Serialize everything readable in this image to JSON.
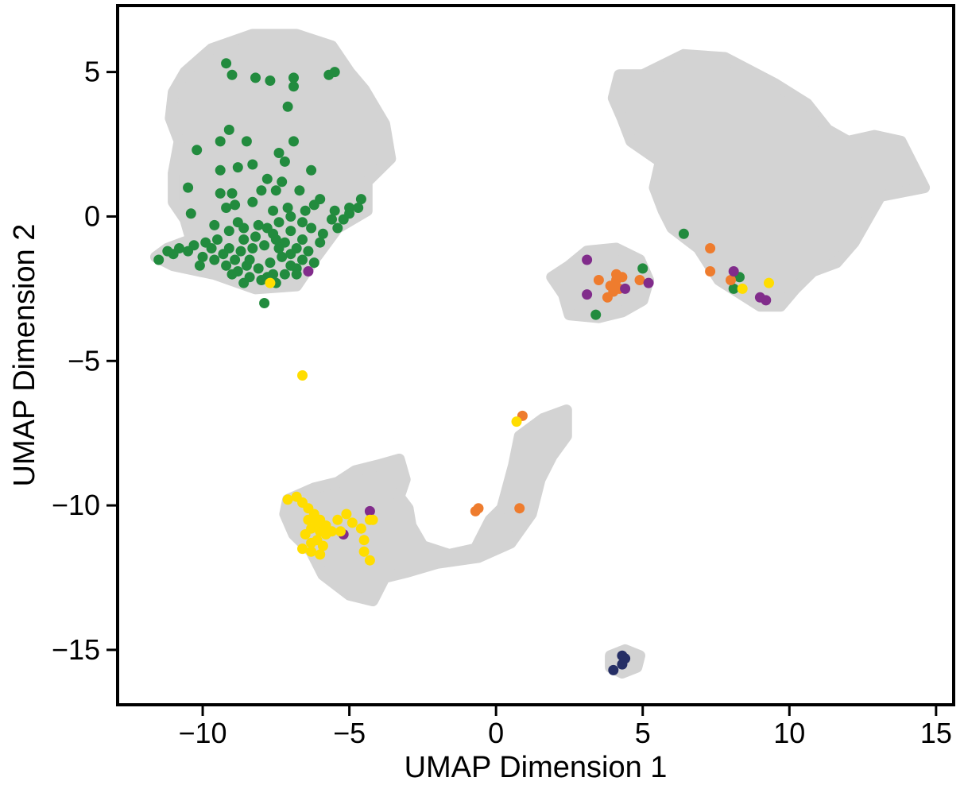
{
  "chart_data": {
    "type": "scatter",
    "title": "",
    "xlabel": "UMAP Dimension 1",
    "ylabel": "UMAP Dimension 2",
    "xlim": [
      -12.9,
      15.6
    ],
    "ylim": [
      -16.9,
      7.3
    ],
    "xticks": [
      -10,
      -5,
      0,
      5,
      10,
      15
    ],
    "yticks": [
      5,
      0,
      -5,
      -10,
      -15
    ],
    "xtick_labels": [
      "−10",
      "−5",
      "0",
      "5",
      "10",
      "15"
    ],
    "ytick_labels": [
      "5",
      "0",
      "−5",
      "−10",
      "−15"
    ],
    "grid": false,
    "legend": "none",
    "background_color": "#d3d3d3",
    "background_regions": [
      {
        "name": "upper-left",
        "polygon": [
          [
            -11.6,
            -1.4
          ],
          [
            -11.2,
            -1.1
          ],
          [
            -10.4,
            -0.8
          ],
          [
            -10.6,
            -0.1
          ],
          [
            -11.0,
            0.5
          ],
          [
            -11.0,
            1.5
          ],
          [
            -10.8,
            2.6
          ],
          [
            -11.1,
            3.4
          ],
          [
            -11.0,
            4.3
          ],
          [
            -10.6,
            5.0
          ],
          [
            -9.7,
            5.8
          ],
          [
            -8.3,
            6.3
          ],
          [
            -6.8,
            6.3
          ],
          [
            -5.6,
            5.9
          ],
          [
            -5.0,
            5.0
          ],
          [
            -4.5,
            4.4
          ],
          [
            -3.8,
            3.2
          ],
          [
            -3.6,
            2.0
          ],
          [
            -4.4,
            1.2
          ],
          [
            -4.4,
            0.2
          ],
          [
            -5.4,
            -0.4
          ],
          [
            -6.2,
            -1.5
          ],
          [
            -6.8,
            -2.4
          ],
          [
            -8.2,
            -2.5
          ],
          [
            -9.6,
            -2.0
          ],
          [
            -11.0,
            -1.7
          ]
        ]
      },
      {
        "name": "upper-right",
        "polygon": [
          [
            4.2,
            4.9
          ],
          [
            5.0,
            4.9
          ],
          [
            6.4,
            5.6
          ],
          [
            7.8,
            5.5
          ],
          [
            9.5,
            4.6
          ],
          [
            10.6,
            3.9
          ],
          [
            11.3,
            3.0
          ],
          [
            12.0,
            2.6
          ],
          [
            12.9,
            2.8
          ],
          [
            13.8,
            2.6
          ],
          [
            14.6,
            1.0
          ],
          [
            13.1,
            0.7
          ],
          [
            12.2,
            -0.9
          ],
          [
            11.6,
            -1.6
          ],
          [
            10.8,
            -1.9
          ],
          [
            10.2,
            -2.5
          ],
          [
            9.7,
            -3.1
          ],
          [
            9.0,
            -3.1
          ],
          [
            7.6,
            -2.2
          ],
          [
            6.9,
            -1.1
          ],
          [
            6.0,
            -0.4
          ],
          [
            5.7,
            0.2
          ],
          [
            5.4,
            1.0
          ],
          [
            5.6,
            1.9
          ],
          [
            4.6,
            2.6
          ],
          [
            4.3,
            3.4
          ],
          [
            4.0,
            4.1
          ]
        ]
      },
      {
        "name": "middle-small",
        "polygon": [
          [
            1.9,
            -2.1
          ],
          [
            2.5,
            -1.7
          ],
          [
            3.1,
            -1.2
          ],
          [
            4.1,
            -1.1
          ],
          [
            4.9,
            -1.5
          ],
          [
            5.2,
            -2.2
          ],
          [
            5.0,
            -2.9
          ],
          [
            4.3,
            -3.3
          ],
          [
            3.5,
            -3.5
          ],
          [
            2.5,
            -3.4
          ],
          [
            2.3,
            -2.7
          ]
        ]
      },
      {
        "name": "bottom-island",
        "polygon": [
          [
            -7.1,
            -9.8
          ],
          [
            -6.2,
            -9.4
          ],
          [
            -5.4,
            -9.2
          ],
          [
            -4.8,
            -8.8
          ],
          [
            -4.0,
            -8.6
          ],
          [
            -3.3,
            -8.4
          ],
          [
            -3.1,
            -9.1
          ],
          [
            -3.3,
            -9.7
          ],
          [
            -3.0,
            -10.1
          ],
          [
            -2.9,
            -10.7
          ],
          [
            -2.5,
            -11.4
          ],
          [
            -1.6,
            -11.7
          ],
          [
            -0.7,
            -11.5
          ],
          [
            -0.2,
            -10.5
          ],
          [
            0.2,
            -10.1
          ],
          [
            0.6,
            -8.6
          ],
          [
            0.8,
            -7.6
          ],
          [
            1.6,
            -7.0
          ],
          [
            2.4,
            -6.7
          ],
          [
            2.4,
            -7.6
          ],
          [
            1.9,
            -8.3
          ],
          [
            1.5,
            -9.1
          ],
          [
            1.2,
            -10.3
          ],
          [
            0.5,
            -11.3
          ],
          [
            -0.6,
            -11.8
          ],
          [
            -2.0,
            -12.0
          ],
          [
            -3.0,
            -12.3
          ],
          [
            -3.8,
            -12.5
          ],
          [
            -4.2,
            -13.3
          ],
          [
            -5.0,
            -13.1
          ],
          [
            -5.9,
            -12.4
          ],
          [
            -6.3,
            -11.6
          ],
          [
            -6.9,
            -11.0
          ],
          [
            -7.2,
            -10.3
          ]
        ]
      },
      {
        "name": "tiny-bottom",
        "polygon": [
          [
            3.9,
            -15.2
          ],
          [
            4.4,
            -15.0
          ],
          [
            4.9,
            -15.2
          ],
          [
            4.8,
            -15.6
          ],
          [
            4.3,
            -15.8
          ],
          [
            3.9,
            -15.6
          ]
        ]
      }
    ],
    "series": [
      {
        "color": "#228b3e",
        "points": [
          [
            -9.2,
            5.3
          ],
          [
            -9.0,
            4.9
          ],
          [
            -8.2,
            4.8
          ],
          [
            -7.7,
            4.7
          ],
          [
            -6.9,
            4.8
          ],
          [
            -6.9,
            4.5
          ],
          [
            -5.7,
            4.9
          ],
          [
            -5.5,
            5.0
          ],
          [
            -7.1,
            3.8
          ],
          [
            -9.1,
            3.0
          ],
          [
            -9.4,
            2.6
          ],
          [
            -8.5,
            2.6
          ],
          [
            -6.9,
            2.6
          ],
          [
            -10.2,
            2.3
          ],
          [
            -7.4,
            2.2
          ],
          [
            -7.2,
            1.9
          ],
          [
            -8.3,
            1.8
          ],
          [
            -9.4,
            1.6
          ],
          [
            -8.8,
            1.7
          ],
          [
            -7.8,
            1.3
          ],
          [
            -6.3,
            1.6
          ],
          [
            -7.3,
            1.2
          ],
          [
            -7.5,
            0.9
          ],
          [
            -8.0,
            0.9
          ],
          [
            -9.0,
            0.8
          ],
          [
            -9.4,
            0.8
          ],
          [
            -10.5,
            1.0
          ],
          [
            -6.7,
            0.9
          ],
          [
            -6.0,
            0.6
          ],
          [
            -6.2,
            0.4
          ],
          [
            -4.6,
            0.6
          ],
          [
            -5.0,
            0.3
          ],
          [
            -5.5,
            0.2
          ],
          [
            -10.4,
            0.1
          ],
          [
            -9.2,
            0.3
          ],
          [
            -7.1,
            0.3
          ],
          [
            -6.5,
            0.2
          ],
          [
            -11.5,
            -1.5
          ],
          [
            -11.0,
            -1.3
          ],
          [
            -10.5,
            -1.2
          ],
          [
            -10.0,
            -1.4
          ],
          [
            -9.6,
            -1.5
          ],
          [
            -9.2,
            -1.7
          ],
          [
            -8.8,
            -1.9
          ],
          [
            -8.4,
            -2.1
          ],
          [
            -8.0,
            -2.2
          ],
          [
            -7.6,
            -2.0
          ],
          [
            -7.2,
            -2.0
          ],
          [
            -6.8,
            -1.8
          ],
          [
            -6.6,
            -1.5
          ],
          [
            -6.8,
            -1.1
          ],
          [
            -7.2,
            -0.9
          ],
          [
            -7.6,
            -0.6
          ],
          [
            -8.1,
            -0.3
          ],
          [
            -8.6,
            -0.4
          ],
          [
            -9.1,
            -0.5
          ],
          [
            -9.5,
            -0.8
          ],
          [
            -9.9,
            -0.9
          ],
          [
            -10.3,
            -1.0
          ],
          [
            -9.7,
            -1.1
          ],
          [
            -9.3,
            -1.3
          ],
          [
            -8.9,
            -1.5
          ],
          [
            -8.5,
            -1.7
          ],
          [
            -8.1,
            -1.8
          ],
          [
            -7.7,
            -1.6
          ],
          [
            -7.3,
            -1.4
          ],
          [
            -7.0,
            -1.3
          ],
          [
            -7.4,
            -1.1
          ],
          [
            -7.9,
            -1.0
          ],
          [
            -8.3,
            -1.1
          ],
          [
            -8.7,
            -1.2
          ],
          [
            -9.1,
            -1.1
          ],
          [
            -8.6,
            -0.8
          ],
          [
            -8.2,
            -0.7
          ],
          [
            -7.8,
            -0.4
          ],
          [
            -7.4,
            -0.2
          ],
          [
            -7.0,
            -0.5
          ],
          [
            -6.6,
            -0.8
          ],
          [
            -6.3,
            -0.4
          ],
          [
            -5.9,
            -0.6
          ],
          [
            -5.6,
            -0.1
          ],
          [
            -5.2,
            -0.1
          ],
          [
            -5.0,
            0.1
          ],
          [
            -4.7,
            0.3
          ],
          [
            -5.4,
            -0.4
          ],
          [
            -6.0,
            -0.9
          ],
          [
            -6.4,
            -1.2
          ],
          [
            -6.2,
            -1.6
          ],
          [
            -7.0,
            -1.7
          ],
          [
            -8.4,
            -1.5
          ],
          [
            -8.8,
            -0.2
          ],
          [
            -9.6,
            -0.3
          ],
          [
            -10.8,
            -1.1
          ],
          [
            -11.2,
            -1.2
          ],
          [
            -10.1,
            -1.7
          ],
          [
            -9.0,
            -2.0
          ],
          [
            -7.8,
            -2.1
          ],
          [
            -7.5,
            -2.3
          ],
          [
            -8.6,
            -2.3
          ],
          [
            -7.9,
            -3.0
          ],
          [
            -6.6,
            -0.2
          ],
          [
            -7.5,
            -0.8
          ],
          [
            -8.9,
            0.4
          ],
          [
            -7.6,
            0.2
          ],
          [
            -8.3,
            0.5
          ],
          [
            -7.0,
            0.0
          ],
          [
            -6.8,
            -2.0
          ],
          [
            3.4,
            -3.4
          ],
          [
            5.0,
            -1.8
          ],
          [
            6.4,
            -0.6
          ],
          [
            8.1,
            -2.5
          ],
          [
            8.3,
            -2.1
          ]
        ]
      },
      {
        "color": "#ee7c2e",
        "points": [
          [
            3.5,
            -2.2
          ],
          [
            3.9,
            -2.4
          ],
          [
            4.1,
            -2.2
          ],
          [
            4.3,
            -2.1
          ],
          [
            4.0,
            -2.6
          ],
          [
            3.8,
            -2.8
          ],
          [
            4.2,
            -2.5
          ],
          [
            4.1,
            -2.0
          ],
          [
            4.9,
            -2.2
          ],
          [
            7.3,
            -1.1
          ],
          [
            7.3,
            -1.9
          ],
          [
            8.0,
            -2.2
          ],
          [
            -0.7,
            -10.2
          ],
          [
            -0.6,
            -10.1
          ],
          [
            0.8,
            -10.1
          ],
          [
            0.9,
            -6.9
          ]
        ]
      },
      {
        "color": "#812c8b",
        "points": [
          [
            -6.4,
            -1.9
          ],
          [
            3.1,
            -1.5
          ],
          [
            3.1,
            -2.7
          ],
          [
            4.4,
            -2.5
          ],
          [
            5.2,
            -2.3
          ],
          [
            8.1,
            -1.9
          ],
          [
            9.0,
            -2.8
          ],
          [
            9.2,
            -2.9
          ],
          [
            -5.2,
            -11.0
          ],
          [
            -4.3,
            -10.2
          ]
        ]
      },
      {
        "color": "#ffdd00",
        "points": [
          [
            -7.7,
            -2.3
          ],
          [
            -6.6,
            -5.5
          ],
          [
            0.7,
            -7.1
          ],
          [
            8.4,
            -2.5
          ],
          [
            9.3,
            -2.3
          ],
          [
            -7.1,
            -9.8
          ],
          [
            -6.8,
            -9.7
          ],
          [
            -6.6,
            -9.9
          ],
          [
            -6.4,
            -10.1
          ],
          [
            -6.2,
            -10.3
          ],
          [
            -6.0,
            -10.5
          ],
          [
            -5.8,
            -10.7
          ],
          [
            -6.3,
            -10.8
          ],
          [
            -6.5,
            -11.0
          ],
          [
            -6.1,
            -11.2
          ],
          [
            -5.9,
            -11.4
          ],
          [
            -6.3,
            -11.6
          ],
          [
            -6.6,
            -11.5
          ],
          [
            -5.8,
            -11.0
          ],
          [
            -5.6,
            -10.9
          ],
          [
            -5.4,
            -10.5
          ],
          [
            -5.1,
            -10.3
          ],
          [
            -4.9,
            -10.6
          ],
          [
            -4.6,
            -10.8
          ],
          [
            -5.3,
            -10.9
          ],
          [
            -6.0,
            -10.9
          ],
          [
            -6.1,
            -10.6
          ],
          [
            -6.4,
            -10.5
          ],
          [
            -4.3,
            -10.5
          ],
          [
            -4.2,
            -10.5
          ],
          [
            -4.5,
            -11.2
          ],
          [
            -4.5,
            -11.6
          ],
          [
            -4.3,
            -11.9
          ],
          [
            -6.3,
            -11.3
          ],
          [
            -6.0,
            -11.7
          ]
        ]
      },
      {
        "color": "#252e65",
        "points": [
          [
            4.0,
            -15.7
          ],
          [
            4.3,
            -15.5
          ],
          [
            4.3,
            -15.2
          ],
          [
            4.4,
            -15.3
          ]
        ]
      }
    ]
  }
}
